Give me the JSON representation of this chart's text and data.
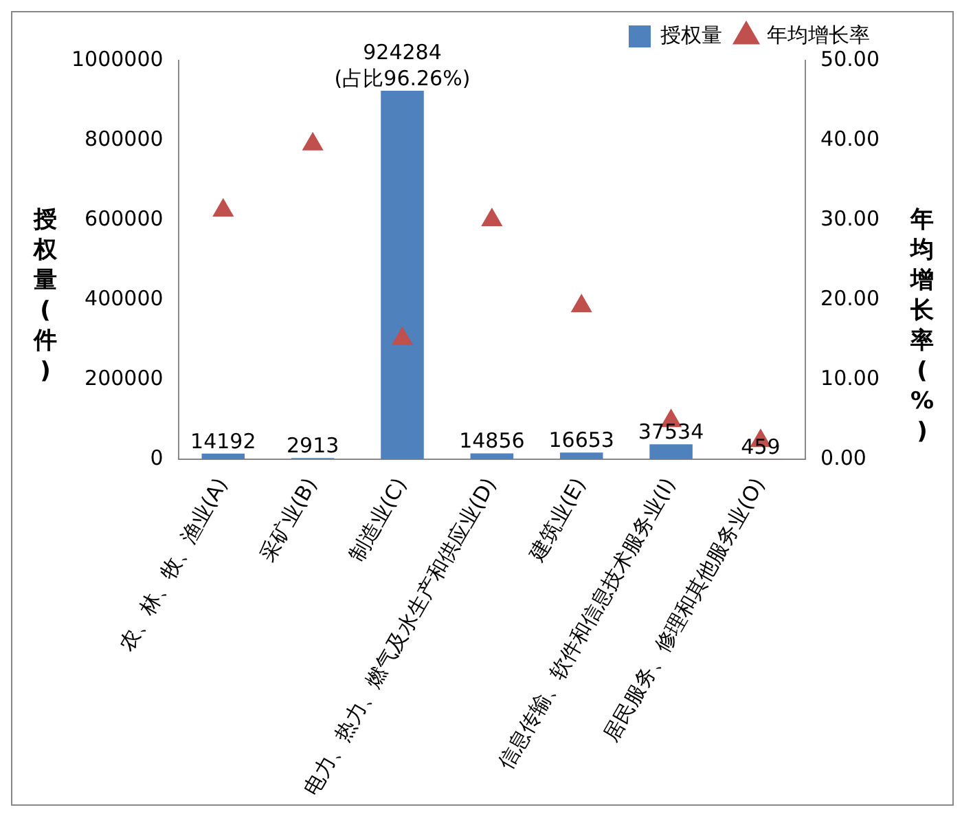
{
  "chart_data": {
    "type": "bar",
    "ylabel": "授权量(件)",
    "y2label": "年均增长率(%)",
    "categories": [
      "农、林、牧、渔业(A)",
      "采矿业(B)",
      "制造业(C)",
      "电力、热力、燃气及水生产和供应业(D)",
      "建筑业(E)",
      "信息传输、软件和信息技术服务业(I)",
      "居民服务、修理和其他服务业(O)"
    ],
    "series": [
      {
        "name": "授权量",
        "color": "#4f81bd",
        "values": [
          14192,
          2913,
          924284,
          14856,
          16653,
          37534,
          459
        ],
        "value_labels": [
          "14192",
          "2913",
          "924284\n(占比96.26%)",
          "14856",
          "16653",
          "37534",
          "459"
        ]
      },
      {
        "name": "年均增长率",
        "type": "scatter",
        "axis": "y2",
        "color": "#c0504d",
        "marker": "triangle",
        "values": [
          31.2,
          39.5,
          15.1,
          30.0,
          19.2,
          4.8,
          2.3
        ]
      }
    ],
    "ylim": [
      0,
      1000000
    ],
    "yticks": [
      0,
      200000,
      400000,
      600000,
      800000,
      1000000
    ],
    "y2lim": [
      0,
      50
    ],
    "y2ticks": [
      {
        "value": 0,
        "label": "0.00"
      },
      {
        "value": 10,
        "label": "10.00"
      },
      {
        "value": 20,
        "label": "20.00"
      },
      {
        "value": 30,
        "label": "30.00"
      },
      {
        "value": 40,
        "label": "40.00"
      },
      {
        "value": 50,
        "label": "50.00"
      }
    ],
    "grid": false,
    "legend": "top right"
  }
}
